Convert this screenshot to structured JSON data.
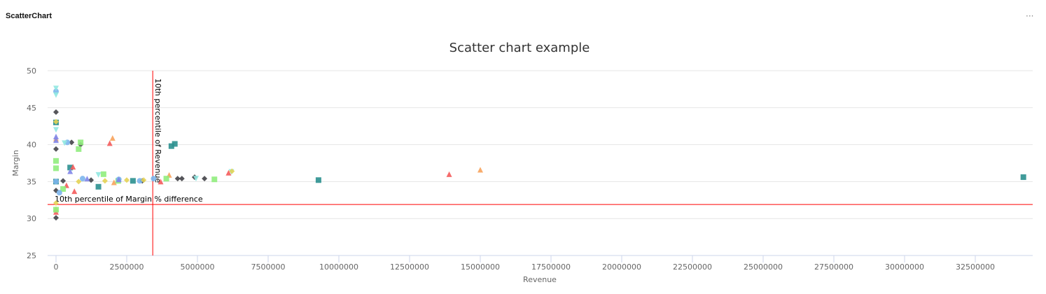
{
  "widget": {
    "title": "ScatterChart",
    "menu_icon": "ellipsis-icon",
    "menu_label": "···"
  },
  "chart_data": {
    "type": "scatter",
    "title": "Scatter chart example",
    "xlabel": "Revenue",
    "ylabel": "Margin",
    "xlim": [
      -300000,
      34700000
    ],
    "ylim": [
      25,
      50
    ],
    "xticks": [
      0,
      2500000,
      5000000,
      7500000,
      10000000,
      12500000,
      15000000,
      17500000,
      20000000,
      22500000,
      25000000,
      27500000,
      30000000,
      32500000
    ],
    "yticks": [
      25,
      30,
      35,
      40,
      45,
      50
    ],
    "grid": "horizontal",
    "legend": "none",
    "plot_lines": [
      {
        "axis": "x",
        "value": 3420000,
        "label": "10th percentile of Revenue",
        "color": "#ff0000"
      },
      {
        "axis": "y",
        "value": 31.9,
        "label": "10th percentile of Margin % difference",
        "color": "#ff0000"
      }
    ],
    "series": [
      {
        "marker": "square",
        "color": "#2b908f",
        "points": [
          [
            0,
            43.0
          ],
          [
            4080000,
            39.8
          ],
          [
            4200000,
            40.1
          ],
          [
            9280000,
            35.2
          ],
          [
            34200000,
            35.6
          ],
          [
            2720000,
            35.1
          ],
          [
            1500000,
            34.3
          ],
          [
            0,
            35.0
          ],
          [
            500000,
            36.9
          ]
        ]
      },
      {
        "marker": "triangle",
        "color": "#f45b5b",
        "points": [
          [
            1900000,
            40.2
          ],
          [
            13900000,
            36.0
          ],
          [
            0,
            30.9
          ],
          [
            650000,
            33.7
          ],
          [
            370000,
            34.5
          ],
          [
            3700000,
            35.0
          ],
          [
            6100000,
            36.2
          ],
          [
            600000,
            37.0
          ]
        ]
      },
      {
        "marker": "triangle",
        "color": "#f7a35c",
        "points": [
          [
            2000000,
            40.9
          ],
          [
            15000000,
            36.6
          ],
          [
            4000000,
            35.9
          ],
          [
            0,
            31.3
          ],
          [
            0,
            40.8
          ],
          [
            2050000,
            34.9
          ]
        ]
      },
      {
        "marker": "diamond",
        "color": "#434348",
        "points": [
          [
            0,
            44.4
          ],
          [
            0,
            30.1
          ],
          [
            0,
            39.4
          ],
          [
            550000,
            40.3
          ],
          [
            870000,
            40.0
          ],
          [
            1240000,
            35.2
          ],
          [
            3050000,
            35.1
          ],
          [
            4300000,
            35.4
          ],
          [
            4450000,
            35.4
          ],
          [
            4900000,
            35.6
          ],
          [
            5250000,
            35.4
          ],
          [
            250000,
            35.1
          ],
          [
            0,
            33.8
          ]
        ]
      },
      {
        "marker": "square",
        "color": "#90ed7d",
        "points": [
          [
            0,
            31.2
          ],
          [
            800000,
            39.4
          ],
          [
            870000,
            40.3
          ],
          [
            5600000,
            35.3
          ],
          [
            3900000,
            35.4
          ],
          [
            1680000,
            36.0
          ],
          [
            0,
            37.8
          ],
          [
            250000,
            34.0
          ],
          [
            2200000,
            35.1
          ],
          [
            0,
            36.8
          ]
        ]
      },
      {
        "marker": "circle",
        "color": "#7cb5ec",
        "points": [
          [
            0,
            47.2
          ],
          [
            400000,
            40.3
          ],
          [
            3450000,
            35.4
          ],
          [
            2960000,
            35.1
          ],
          [
            940000,
            35.4
          ],
          [
            2220000,
            35.3
          ],
          [
            0,
            35.0
          ],
          [
            120000,
            33.5
          ]
        ]
      },
      {
        "marker": "triangle-down",
        "color": "#91e8e1",
        "points": [
          [
            0,
            47.6
          ],
          [
            0,
            46.7
          ],
          [
            0,
            42.0
          ],
          [
            6200000,
            36.3
          ],
          [
            4950000,
            35.4
          ],
          [
            1500000,
            35.9
          ],
          [
            300000,
            40.2
          ]
        ]
      },
      {
        "marker": "diamond",
        "color": "#e4d354",
        "points": [
          [
            0,
            43.1
          ],
          [
            0,
            32.1
          ],
          [
            2500000,
            35.2
          ],
          [
            3100000,
            35.2
          ],
          [
            800000,
            35.0
          ],
          [
            1730000,
            35.1
          ],
          [
            6220000,
            36.4
          ]
        ]
      },
      {
        "marker": "triangle",
        "color": "#8085e9",
        "points": [
          [
            0,
            41.1
          ],
          [
            0,
            40.6
          ],
          [
            500000,
            36.4
          ],
          [
            2220000,
            35.3
          ],
          [
            1100000,
            35.4
          ]
        ]
      }
    ]
  }
}
